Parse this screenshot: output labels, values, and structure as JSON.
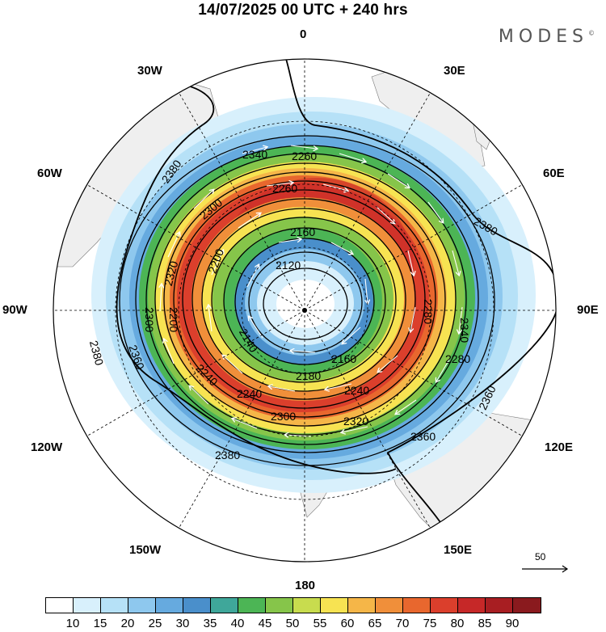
{
  "title": "14/07/2025  00 UTC  + 240 hrs",
  "brand": "MODES",
  "brand_mark": "©",
  "longitude_labels": {
    "n0": "0",
    "w30": "30W",
    "e30": "30E",
    "w60": "60W",
    "e60": "60E",
    "w90": "90W",
    "e90": "90E",
    "w120": "120W",
    "e120": "120E",
    "w150": "150W",
    "e150": "150E",
    "s180": "180"
  },
  "contours": {
    "labels": [
      "2120",
      "2160",
      "2160",
      "2180",
      "2140",
      "2200",
      "2260",
      "2340",
      "2300",
      "2320",
      "2280",
      "2380",
      "2380",
      "2340",
      "2280",
      "2240",
      "2200",
      "2300",
      "2240",
      "2240",
      "2260",
      "2300",
      "2320",
      "2360",
      "2360",
      "2360",
      "2380",
      "2380"
    ]
  },
  "reference_vector": {
    "value": "50",
    "icon": "arrow-right-icon"
  },
  "colorbar": {
    "colors": [
      "#ffffff",
      "#d8f0fc",
      "#b6e1f7",
      "#8ec8ee",
      "#66aadf",
      "#4a8fcb",
      "#3fa79a",
      "#4cb555",
      "#86c54a",
      "#c8dc4e",
      "#f7e352",
      "#f5b648",
      "#f08f3a",
      "#e8672e",
      "#db3f2c",
      "#c62828",
      "#a81e22",
      "#8a1a1e"
    ],
    "labels": [
      "10",
      "15",
      "20",
      "25",
      "30",
      "35",
      "40",
      "45",
      "50",
      "55",
      "60",
      "65",
      "70",
      "75",
      "80",
      "85",
      "90"
    ]
  }
}
